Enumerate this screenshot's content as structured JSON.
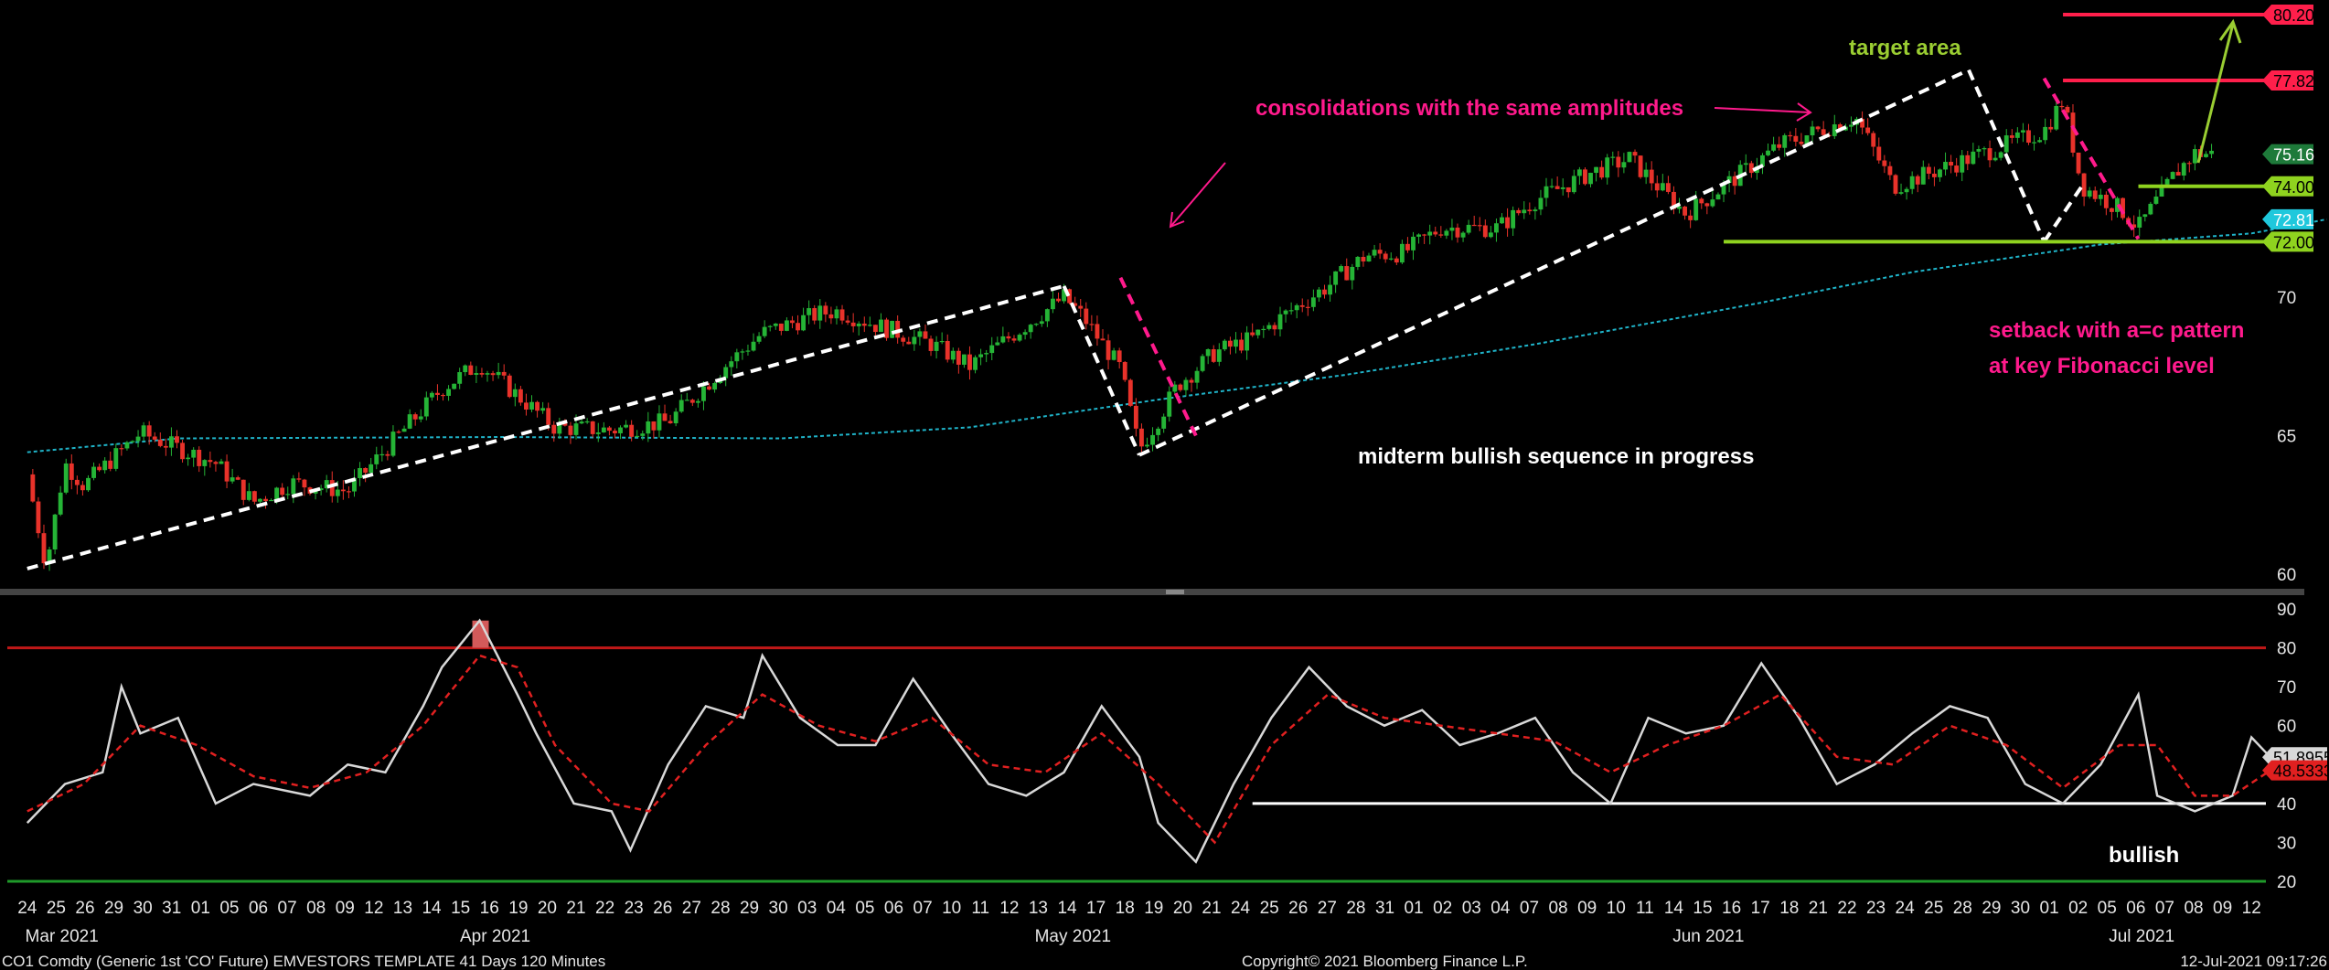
{
  "chart_data": [
    {
      "type": "candlestick",
      "panel": "price",
      "ylim": [
        59,
        81
      ],
      "y_ticks": [
        "60",
        "65",
        "70"
      ],
      "moving_average": {
        "name": "",
        "color": "#1fb3c8",
        "points": [
          [
            0,
            64.4
          ],
          [
            8,
            64.9
          ],
          [
            25,
            64.95
          ],
          [
            40,
            64.9
          ],
          [
            50,
            65.3
          ],
          [
            60,
            66.3
          ],
          [
            70,
            67.2
          ],
          [
            80,
            68.3
          ],
          [
            92,
            69.8
          ],
          [
            100,
            70.9
          ],
          [
            110,
            71.9
          ],
          [
            118,
            72.3
          ],
          [
            122,
            72.81
          ]
        ]
      },
      "price_path": [
        [
          0,
          63.6
        ],
        [
          1,
          60.3
        ],
        [
          2,
          64.0
        ],
        [
          3,
          63.2
        ],
        [
          6,
          65.1
        ],
        [
          10,
          64.0
        ],
        [
          12,
          62.6
        ],
        [
          14,
          63.3
        ],
        [
          17,
          63.0
        ],
        [
          19,
          64.5
        ],
        [
          22,
          66.7
        ],
        [
          24,
          67.6
        ],
        [
          28,
          65.3
        ],
        [
          31,
          65.2
        ],
        [
          34,
          65.5
        ],
        [
          37,
          67.5
        ],
        [
          39,
          68.7
        ],
        [
          42,
          69.4
        ],
        [
          43,
          69.5
        ],
        [
          45,
          69.0
        ],
        [
          48,
          68.3
        ],
        [
          50,
          67.5
        ],
        [
          53,
          69.0
        ],
        [
          55,
          70.0
        ],
        [
          56,
          69.3
        ],
        [
          58,
          67.4
        ],
        [
          59,
          64.5
        ],
        [
          60,
          65.6
        ],
        [
          61,
          66.8
        ],
        [
          63,
          68.0
        ],
        [
          65,
          68.5
        ],
        [
          67,
          69.5
        ],
        [
          69,
          70.4
        ],
        [
          71,
          71.5
        ],
        [
          73,
          71.6
        ],
        [
          75,
          72.5
        ],
        [
          78,
          72.5
        ],
        [
          80,
          73.5
        ],
        [
          83,
          74.5
        ],
        [
          85,
          75.0
        ],
        [
          88,
          73.0
        ],
        [
          90,
          74.0
        ],
        [
          93,
          75.5
        ],
        [
          95,
          76.0
        ],
        [
          97,
          76.5
        ],
        [
          99,
          74.0
        ],
        [
          101,
          74.5
        ],
        [
          103,
          75.0
        ],
        [
          105,
          75.5
        ],
        [
          107,
          76.0
        ],
        [
          108,
          77.1
        ],
        [
          109,
          74.0
        ],
        [
          111,
          73.2
        ],
        [
          112,
          72.5
        ],
        [
          114,
          74.5
        ],
        [
          115,
          75.2
        ],
        [
          116,
          75.16
        ]
      ],
      "trend_lines": [
        {
          "from": [
            0,
            60.2
          ],
          "to": [
            55,
            70.4
          ],
          "style": "dashed",
          "color": "#ffffff"
        },
        {
          "from": [
            55,
            70.4
          ],
          "to": [
            59,
            64.3
          ],
          "style": "dashed",
          "color": "#ffffff"
        },
        {
          "from": [
            59,
            64.3
          ],
          "to": [
            103,
            78.2
          ],
          "style": "dashed",
          "color": "#ffffff"
        },
        {
          "from": [
            103,
            78.2
          ],
          "to": [
            107,
            72.0
          ],
          "style": "dashed",
          "color": "#ffffff"
        },
        {
          "from": [
            107,
            72.0
          ],
          "to": [
            109,
            74.0
          ],
          "style": "dashed",
          "color": "#ffffff"
        },
        {
          "from": [
            58,
            70.7
          ],
          "to": [
            62,
            65.0
          ],
          "style": "dashed",
          "color": "#ff1a8c"
        },
        {
          "from": [
            107,
            77.9
          ],
          "to": [
            112,
            72.1
          ],
          "style": "dashed",
          "color": "#ff1a8c"
        }
      ],
      "horizontal_levels": [
        {
          "value": 80.2,
          "label": "80.20",
          "color": "#ff1f4b",
          "from_x": 108
        },
        {
          "value": 77.82,
          "label": "77.82",
          "color": "#ff1f4b",
          "from_x": 108
        },
        {
          "value": 74.0,
          "label": "74.00",
          "color": "#8fd31f",
          "from_x": 112
        },
        {
          "value": 72.0,
          "label": "72.00",
          "color": "#8fd31f",
          "from_x": 90
        }
      ],
      "value_tags": [
        {
          "value": 75.16,
          "label": "75.16",
          "color": "#1e7a3a"
        },
        {
          "value": 72.81,
          "label": "72.81",
          "color": "#1fc8dc"
        }
      ],
      "annotations": [
        {
          "text": "target area",
          "color": "#9acd32"
        },
        {
          "text": "consolidations with the same amplitudes",
          "color": "#ff1a8c"
        },
        {
          "text": "midterm bullish sequence in progress",
          "color": "#ffffff"
        },
        {
          "text": "setback with a=c pattern",
          "color": "#ff1a8c"
        },
        {
          "text": "at key Fibonacci level",
          "color": "#ff1a8c"
        }
      ]
    },
    {
      "type": "line",
      "panel": "oscillator",
      "ylim": [
        18,
        92
      ],
      "y_ticks": [
        "90",
        "80",
        "70",
        "60",
        "50",
        "40",
        "30",
        "20"
      ],
      "levels": [
        {
          "value": 80,
          "color": "#c01818"
        },
        {
          "value": 20,
          "color": "#1f9a2a"
        },
        {
          "value": 40,
          "color": "#ffffff"
        }
      ],
      "series": [
        {
          "name": "",
          "color": "#d8d8d8",
          "points": [
            [
              0,
              35
            ],
            [
              2,
              45
            ],
            [
              4,
              48
            ],
            [
              5,
              70
            ],
            [
              6,
              58
            ],
            [
              8,
              62
            ],
            [
              10,
              40
            ],
            [
              12,
              45
            ],
            [
              15,
              42
            ],
            [
              17,
              50
            ],
            [
              19,
              48
            ],
            [
              21,
              65
            ],
            [
              22,
              75
            ],
            [
              24,
              87
            ],
            [
              26,
              68
            ],
            [
              27,
              58
            ],
            [
              29,
              40
            ],
            [
              31,
              38
            ],
            [
              32,
              28
            ],
            [
              34,
              50
            ],
            [
              36,
              65
            ],
            [
              38,
              62
            ],
            [
              39,
              78
            ],
            [
              41,
              62
            ],
            [
              43,
              55
            ],
            [
              45,
              55
            ],
            [
              47,
              72
            ],
            [
              49,
              58
            ],
            [
              51,
              45
            ],
            [
              53,
              42
            ],
            [
              55,
              48
            ],
            [
              57,
              65
            ],
            [
              59,
              52
            ],
            [
              60,
              35
            ],
            [
              62,
              25
            ],
            [
              64,
              45
            ],
            [
              66,
              62
            ],
            [
              68,
              75
            ],
            [
              70,
              65
            ],
            [
              72,
              60
            ],
            [
              74,
              64
            ],
            [
              76,
              55
            ],
            [
              78,
              58
            ],
            [
              80,
              62
            ],
            [
              82,
              48
            ],
            [
              84,
              40
            ],
            [
              86,
              62
            ],
            [
              88,
              58
            ],
            [
              90,
              60
            ],
            [
              92,
              76
            ],
            [
              94,
              62
            ],
            [
              96,
              45
            ],
            [
              98,
              50
            ],
            [
              100,
              58
            ],
            [
              102,
              65
            ],
            [
              104,
              62
            ],
            [
              106,
              45
            ],
            [
              108,
              40
            ],
            [
              110,
              50
            ],
            [
              112,
              68
            ],
            [
              113,
              42
            ],
            [
              115,
              38
            ],
            [
              117,
              42
            ],
            [
              118,
              57
            ],
            [
              119,
              51.9
            ]
          ]
        },
        {
          "name": "",
          "color": "#e02020",
          "dashed": true,
          "points": [
            [
              0,
              38
            ],
            [
              3,
              45
            ],
            [
              6,
              60
            ],
            [
              9,
              55
            ],
            [
              12,
              47
            ],
            [
              15,
              44
            ],
            [
              18,
              48
            ],
            [
              21,
              60
            ],
            [
              24,
              78
            ],
            [
              26,
              75
            ],
            [
              28,
              55
            ],
            [
              31,
              40
            ],
            [
              33,
              38
            ],
            [
              36,
              55
            ],
            [
              39,
              68
            ],
            [
              42,
              60
            ],
            [
              45,
              56
            ],
            [
              48,
              62
            ],
            [
              51,
              50
            ],
            [
              54,
              48
            ],
            [
              57,
              58
            ],
            [
              60,
              45
            ],
            [
              63,
              30
            ],
            [
              66,
              55
            ],
            [
              69,
              68
            ],
            [
              72,
              62
            ],
            [
              75,
              60
            ],
            [
              78,
              58
            ],
            [
              81,
              56
            ],
            [
              84,
              48
            ],
            [
              87,
              55
            ],
            [
              90,
              60
            ],
            [
              93,
              68
            ],
            [
              96,
              52
            ],
            [
              99,
              50
            ],
            [
              102,
              60
            ],
            [
              105,
              55
            ],
            [
              108,
              44
            ],
            [
              111,
              55
            ],
            [
              113,
              55
            ],
            [
              115,
              42
            ],
            [
              117,
              42
            ],
            [
              119,
              48.5
            ]
          ]
        }
      ],
      "value_tags": [
        {
          "value": 51.8955,
          "label": "51.8955",
          "color": "#d8d8d8"
        },
        {
          "value": 48.5,
          "label": "48.5333",
          "color": "#e02020"
        }
      ],
      "annotations": [
        {
          "text": "bullish",
          "color": "#ffffff"
        }
      ]
    }
  ],
  "x_axis": {
    "day_labels": [
      "24",
      "25",
      "26",
      "29",
      "30",
      "31",
      "01",
      "05",
      "06",
      "07",
      "08",
      "09",
      "12",
      "13",
      "14",
      "15",
      "16",
      "19",
      "20",
      "21",
      "22",
      "23",
      "26",
      "27",
      "28",
      "29",
      "30",
      "03",
      "04",
      "05",
      "06",
      "07",
      "10",
      "11",
      "12",
      "13",
      "14",
      "17",
      "18",
      "19",
      "20",
      "21",
      "24",
      "25",
      "26",
      "27",
      "28",
      "31",
      "01",
      "02",
      "03",
      "04",
      "07",
      "08",
      "09",
      "10",
      "11",
      "14",
      "15",
      "16",
      "17",
      "18",
      "21",
      "22",
      "23",
      "24",
      "25",
      "28",
      "29",
      "30",
      "01",
      "02",
      "05",
      "06",
      "07",
      "08",
      "09",
      "12"
    ],
    "month_labels": [
      "Mar 2021",
      "Apr 2021",
      "May 2021",
      "Jun 2021",
      "Jul 2021"
    ]
  },
  "footer": {
    "security": "CO1 Comdty (Generic 1st 'CO' Future) EMVESTORS TEMPLATE 41 Days 120 Minutes",
    "copyright": "Copyright© 2021 Bloomberg Finance L.P.",
    "timestamp": "12-Jul-2021 09:17:26"
  }
}
